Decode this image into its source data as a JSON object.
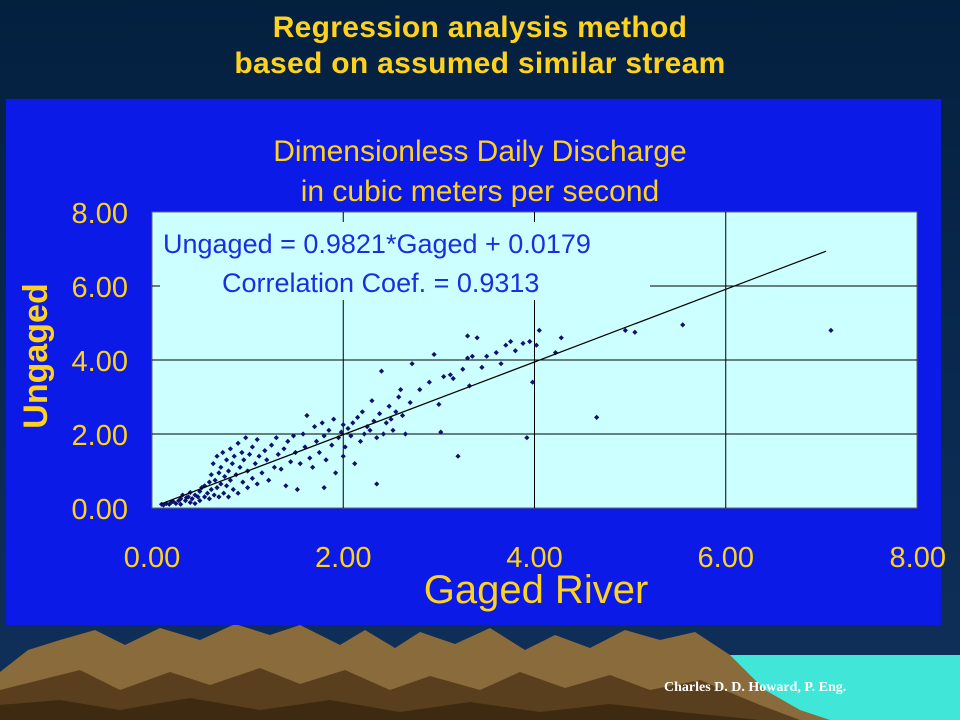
{
  "slide": {
    "title_line1": "Regression analysis method",
    "title_line2": "based on assumed similar stream",
    "credit": "Charles D. D. Howard, P. Eng.",
    "colors": {
      "title": "#ffd21f",
      "panel": "#0b1ae6",
      "plot_bg": "#ccffff",
      "marker": "#10106e",
      "annotation": "#1a2fe0"
    }
  },
  "chart_data": {
    "type": "scatter",
    "title": "Dimensionless Daily Discharge",
    "subtitle": "in cubic meters per second",
    "xlabel": "Gaged River",
    "ylabel": "Ungaged",
    "xlim": [
      0,
      8
    ],
    "ylim": [
      0,
      8
    ],
    "xticks": [
      "0.00",
      "2.00",
      "4.00",
      "6.00",
      "8.00"
    ],
    "yticks": [
      "0.00",
      "2.00",
      "4.00",
      "6.00",
      "8.00"
    ],
    "grid": true,
    "legend": "none",
    "annotations": [
      "Ungaged = 0.9821*Gaged + 0.0179",
      "Correlation Coef. = 0.9313"
    ],
    "regression": {
      "slope": 0.9821,
      "intercept": 0.0179,
      "x_range": [
        0.1,
        7.05
      ]
    },
    "points": [
      [
        0.1,
        0.1
      ],
      [
        0.12,
        0.08
      ],
      [
        0.15,
        0.12
      ],
      [
        0.18,
        0.1
      ],
      [
        0.2,
        0.15
      ],
      [
        0.22,
        0.18
      ],
      [
        0.25,
        0.12
      ],
      [
        0.28,
        0.2
      ],
      [
        0.3,
        0.25
      ],
      [
        0.3,
        0.1
      ],
      [
        0.32,
        0.35
      ],
      [
        0.35,
        0.2
      ],
      [
        0.36,
        0.28
      ],
      [
        0.38,
        0.3
      ],
      [
        0.4,
        0.15
      ],
      [
        0.4,
        0.42
      ],
      [
        0.42,
        0.25
      ],
      [
        0.45,
        0.35
      ],
      [
        0.45,
        0.12
      ],
      [
        0.48,
        0.3
      ],
      [
        0.5,
        0.45
      ],
      [
        0.5,
        0.2
      ],
      [
        0.52,
        0.55
      ],
      [
        0.55,
        0.3
      ],
      [
        0.55,
        0.6
      ],
      [
        0.58,
        0.4
      ],
      [
        0.6,
        0.7
      ],
      [
        0.6,
        0.25
      ],
      [
        0.62,
        0.5
      ],
      [
        0.62,
        0.9
      ],
      [
        0.64,
        1.2
      ],
      [
        0.65,
        0.35
      ],
      [
        0.66,
        0.75
      ],
      [
        0.68,
        1.4
      ],
      [
        0.68,
        0.55
      ],
      [
        0.7,
        0.3
      ],
      [
        0.7,
        0.95
      ],
      [
        0.72,
        1.1
      ],
      [
        0.72,
        0.65
      ],
      [
        0.74,
        1.5
      ],
      [
        0.75,
        0.4
      ],
      [
        0.76,
        0.85
      ],
      [
        0.78,
        1.3
      ],
      [
        0.78,
        0.6
      ],
      [
        0.8,
        1.0
      ],
      [
        0.8,
        0.3
      ],
      [
        0.82,
        1.6
      ],
      [
        0.82,
        0.75
      ],
      [
        0.84,
        1.2
      ],
      [
        0.85,
        0.5
      ],
      [
        0.86,
        1.4
      ],
      [
        0.88,
        0.9
      ],
      [
        0.9,
        1.75
      ],
      [
        0.9,
        0.4
      ],
      [
        0.92,
        1.1
      ],
      [
        0.94,
        1.5
      ],
      [
        0.95,
        0.7
      ],
      [
        0.96,
        1.3
      ],
      [
        0.98,
        1.9
      ],
      [
        1.0,
        0.55
      ],
      [
        1.0,
        1.0
      ],
      [
        1.02,
        1.45
      ],
      [
        1.05,
        0.8
      ],
      [
        1.05,
        1.65
      ],
      [
        1.08,
        1.2
      ],
      [
        1.1,
        0.65
      ],
      [
        1.1,
        1.85
      ],
      [
        1.12,
        1.4
      ],
      [
        1.15,
        0.95
      ],
      [
        1.18,
        1.55
      ],
      [
        1.2,
        1.3
      ],
      [
        1.22,
        0.75
      ],
      [
        1.25,
        1.7
      ],
      [
        1.28,
        1.1
      ],
      [
        1.3,
        1.9
      ],
      [
        1.32,
        1.45
      ],
      [
        1.35,
        1.05
      ],
      [
        1.38,
        1.6
      ],
      [
        1.4,
        0.6
      ],
      [
        1.42,
        1.8
      ],
      [
        1.45,
        1.25
      ],
      [
        1.48,
        1.95
      ],
      [
        1.5,
        1.5
      ],
      [
        1.52,
        0.5
      ],
      [
        1.55,
        1.2
      ],
      [
        1.58,
        2.0
      ],
      [
        1.6,
        1.65
      ],
      [
        1.62,
        2.5
      ],
      [
        1.65,
        1.35
      ],
      [
        1.68,
        1.1
      ],
      [
        1.7,
        2.2
      ],
      [
        1.72,
        1.8
      ],
      [
        1.75,
        1.5
      ],
      [
        1.78,
        2.3
      ],
      [
        1.8,
        1.95
      ],
      [
        1.8,
        0.55
      ],
      [
        1.82,
        1.3
      ],
      [
        1.85,
        2.1
      ],
      [
        1.88,
        1.7
      ],
      [
        1.9,
        2.4
      ],
      [
        1.92,
        0.95
      ],
      [
        1.95,
        1.9
      ],
      [
        1.98,
        2.05
      ],
      [
        2.0,
        1.4
      ],
      [
        2.0,
        2.25
      ],
      [
        2.02,
        1.65
      ],
      [
        2.05,
        2.15
      ],
      [
        2.08,
        1.95
      ],
      [
        2.1,
        2.3
      ],
      [
        2.12,
        1.2
      ],
      [
        2.15,
        2.45
      ],
      [
        2.18,
        1.8
      ],
      [
        2.2,
        2.6
      ],
      [
        2.22,
        2.0
      ],
      [
        2.25,
        2.2
      ],
      [
        2.28,
        2.1
      ],
      [
        2.3,
        2.9
      ],
      [
        2.32,
        2.35
      ],
      [
        2.35,
        0.65
      ],
      [
        2.35,
        1.9
      ],
      [
        2.38,
        2.55
      ],
      [
        2.4,
        3.7
      ],
      [
        2.42,
        2.0
      ],
      [
        2.45,
        2.3
      ],
      [
        2.48,
        2.75
      ],
      [
        2.5,
        2.4
      ],
      [
        2.52,
        2.1
      ],
      [
        2.55,
        2.6
      ],
      [
        2.58,
        3.0
      ],
      [
        2.6,
        3.2
      ],
      [
        2.62,
        2.5
      ],
      [
        2.65,
        2.0
      ],
      [
        2.7,
        2.85
      ],
      [
        2.72,
        3.9
      ],
      [
        2.8,
        3.2
      ],
      [
        2.9,
        3.4
      ],
      [
        2.95,
        4.15
      ],
      [
        3.0,
        2.8
      ],
      [
        3.02,
        2.05
      ],
      [
        3.05,
        3.55
      ],
      [
        3.12,
        3.6
      ],
      [
        3.15,
        3.5
      ],
      [
        3.2,
        1.4
      ],
      [
        3.25,
        3.75
      ],
      [
        3.3,
        4.05
      ],
      [
        3.3,
        4.65
      ],
      [
        3.32,
        3.3
      ],
      [
        3.35,
        4.1
      ],
      [
        3.4,
        4.6
      ],
      [
        3.45,
        3.8
      ],
      [
        3.5,
        4.1
      ],
      [
        3.6,
        4.2
      ],
      [
        3.65,
        3.9
      ],
      [
        3.7,
        4.4
      ],
      [
        3.75,
        4.5
      ],
      [
        3.8,
        4.25
      ],
      [
        3.88,
        4.45
      ],
      [
        3.92,
        1.9
      ],
      [
        3.95,
        4.5
      ],
      [
        3.98,
        3.4
      ],
      [
        4.02,
        4.4
      ],
      [
        4.05,
        4.8
      ],
      [
        4.22,
        4.2
      ],
      [
        4.28,
        4.6
      ],
      [
        4.65,
        2.45
      ],
      [
        4.95,
        4.8
      ],
      [
        5.05,
        4.75
      ],
      [
        5.55,
        4.95
      ],
      [
        7.1,
        4.8
      ]
    ]
  }
}
